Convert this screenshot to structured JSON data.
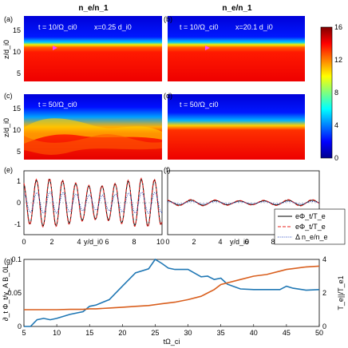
{
  "figure": {
    "column_titles": [
      "n_e/n_1",
      "n_e/n_1"
    ],
    "colorbar": {
      "ticks": [
        "16",
        "12",
        "8",
        "4",
        "0"
      ],
      "vmin": 0,
      "vmax": 16
    }
  },
  "panels": [
    {
      "id": "a",
      "label": "(a)",
      "annot_t": "t = 10/Ω_ci0",
      "annot_x": "x=0.25 d_i0",
      "ylabel": "z/d_i0",
      "yticks": [
        "15",
        "10",
        "5"
      ]
    },
    {
      "id": "b",
      "label": "(b)",
      "annot_t": "t = 10/Ω_ci0",
      "annot_x": "x=20.1 d_i0",
      "ylabel": "",
      "yticks": [
        "15",
        "10",
        "5"
      ]
    },
    {
      "id": "c",
      "label": "(c)",
      "annot_t": "t = 50/Ω_ci0",
      "annot_x": "",
      "ylabel": "z/d_i0",
      "yticks": [
        "15",
        "10",
        "5"
      ]
    },
    {
      "id": "d",
      "label": "(d)",
      "annot_t": "t = 50/Ω_ci0",
      "annot_x": "",
      "ylabel": "",
      "yticks": [
        "15",
        "10",
        "5"
      ]
    },
    {
      "id": "e",
      "label": "(e)",
      "yticks": [
        "1",
        "0",
        "-1"
      ],
      "xticks": [
        "0",
        "2",
        "4",
        "6",
        "8",
        "10"
      ],
      "xlabel": "y/d_i0"
    },
    {
      "id": "f",
      "label": "(f)",
      "yticks": [
        "1",
        "0",
        "-1"
      ],
      "xticks": [
        "0",
        "2",
        "4",
        "6",
        "8",
        "10"
      ],
      "xlabel": "y/d_i0"
    },
    {
      "id": "g",
      "label": "(g)",
      "xlabel": "tΩ_ci",
      "ylabel_left": "∂_t Φ_t/v_A B_0L",
      "ylabel_right": "T_e||/T_e1"
    }
  ],
  "legend_ef": [
    {
      "text": "eΦ_t/T_e",
      "color": "#000000",
      "style": "solid"
    },
    {
      "text": "eΦ_t/T_e",
      "color": "#e8231e",
      "style": "dashed"
    },
    {
      "text": "Δ n_e/n_e",
      "color": "#1f3fbf",
      "style": "dotted"
    }
  ],
  "chart_data": [
    {
      "type": "line",
      "panel": "e",
      "xlim": [
        0,
        10
      ],
      "ylim": [
        -1.5,
        1.5
      ],
      "yticks": [
        1,
        0,
        -1
      ],
      "xticks": [
        0,
        2,
        4,
        6,
        8,
        10
      ],
      "series": [
        {
          "name": "eΦ_t/T_e",
          "color": "#000000",
          "model": {
            "amplitude": 1.1,
            "period": 0.95,
            "phase": 0.3
          }
        },
        {
          "name": "eΦ_t/T_e",
          "color": "#e8231e",
          "model": {
            "amplitude": 1.15,
            "period": 0.95,
            "phase": 0.35
          }
        },
        {
          "name": "Δ n_e/n_e",
          "color": "#1f3fbf",
          "model": {
            "amplitude": 0.5,
            "period": 0.95,
            "phase": 0.1
          }
        }
      ]
    },
    {
      "type": "line",
      "panel": "f",
      "xlim": [
        0,
        10
      ],
      "ylim": [
        -1.5,
        1.5
      ],
      "yticks": [
        1,
        0,
        -1
      ],
      "xticks": [
        0,
        2,
        4,
        6,
        8,
        10
      ],
      "series": [
        {
          "name": "eΦ_t/T_e",
          "color": "#000000",
          "model": {
            "amplitude": 0.12,
            "period": 1.6,
            "phase": 0.2
          }
        },
        {
          "name": "eΦ_t/T_e",
          "color": "#e8231e",
          "model": {
            "amplitude": 0.15,
            "period": 1.6,
            "phase": 0.25
          }
        },
        {
          "name": "Δ n_e/n_e",
          "color": "#1f3fbf",
          "model": {
            "amplitude": 0.06,
            "period": 1.6,
            "phase": 0.1
          }
        }
      ]
    },
    {
      "type": "line",
      "panel": "g",
      "x": [
        5,
        6,
        7,
        8,
        9,
        10,
        12,
        14,
        15,
        16,
        18,
        20,
        22,
        24,
        25,
        26,
        27,
        28,
        30,
        32,
        33,
        34,
        35,
        36,
        38,
        40,
        42,
        44,
        45,
        46,
        48,
        50
      ],
      "xlim": [
        5,
        50
      ],
      "xticks": [
        5,
        10,
        15,
        20,
        25,
        30,
        35,
        40,
        45,
        50
      ],
      "left_axis": {
        "ylim": [
          0,
          0.1
        ],
        "yticks": [
          0,
          0.05,
          0.1
        ]
      },
      "right_axis": {
        "ylim": [
          0,
          4
        ],
        "yticks": [
          0,
          2,
          4
        ]
      },
      "series": [
        {
          "name": "",
          "axis": "left",
          "color": "#1f77b4",
          "values": [
            0,
            0,
            0.01,
            0.012,
            0.01,
            0.012,
            0.018,
            0.022,
            0.03,
            0.032,
            0.04,
            0.06,
            0.08,
            0.086,
            0.1,
            0.094,
            0.087,
            0.085,
            0.085,
            0.074,
            0.075,
            0.07,
            0.072,
            0.063,
            0.056,
            0.055,
            0.055,
            0.055,
            0.06,
            0.057,
            0.054,
            0.055
          ]
        },
        {
          "name": "",
          "axis": "right",
          "color": "#d95f1e",
          "values": [
            1,
            1,
            1,
            1,
            1,
            1,
            1.02,
            1.02,
            1.05,
            1.05,
            1.1,
            1.15,
            1.2,
            1.25,
            1.3,
            1.35,
            1.4,
            1.45,
            1.6,
            1.8,
            2.0,
            2.2,
            2.5,
            2.6,
            2.8,
            3.0,
            3.1,
            3.3,
            3.4,
            3.45,
            3.55,
            3.6
          ]
        }
      ]
    }
  ]
}
